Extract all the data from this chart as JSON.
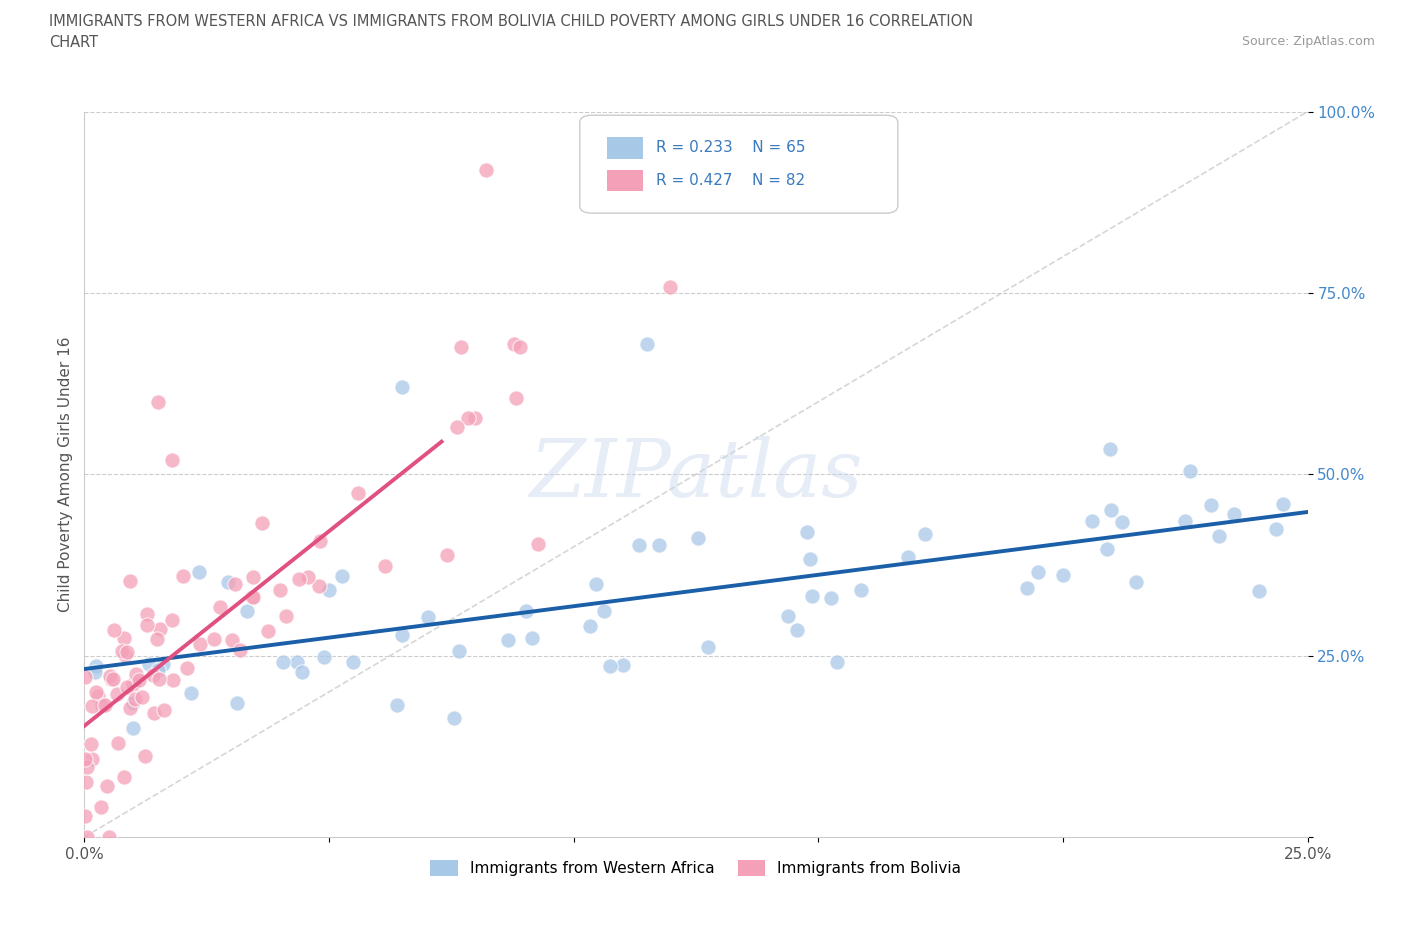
{
  "title_line1": "IMMIGRANTS FROM WESTERN AFRICA VS IMMIGRANTS FROM BOLIVIA CHILD POVERTY AMONG GIRLS UNDER 16 CORRELATION",
  "title_line2": "CHART",
  "source": "Source: ZipAtlas.com",
  "ylabel": "Child Poverty Among Girls Under 16",
  "legend_r1": "R = 0.233",
  "legend_n1": "N = 65",
  "legend_r2": "R = 0.427",
  "legend_n2": "N = 82",
  "color_blue": "#a8c8e8",
  "color_pink": "#f4a0b8",
  "color_blue_line": "#1a5fa8",
  "color_pink_line": "#e05080",
  "color_diag": "#cccccc",
  "color_legend_text": "#3a7abf",
  "xlim": [
    0.0,
    0.25
  ],
  "ylim": [
    0.0,
    1.0
  ]
}
